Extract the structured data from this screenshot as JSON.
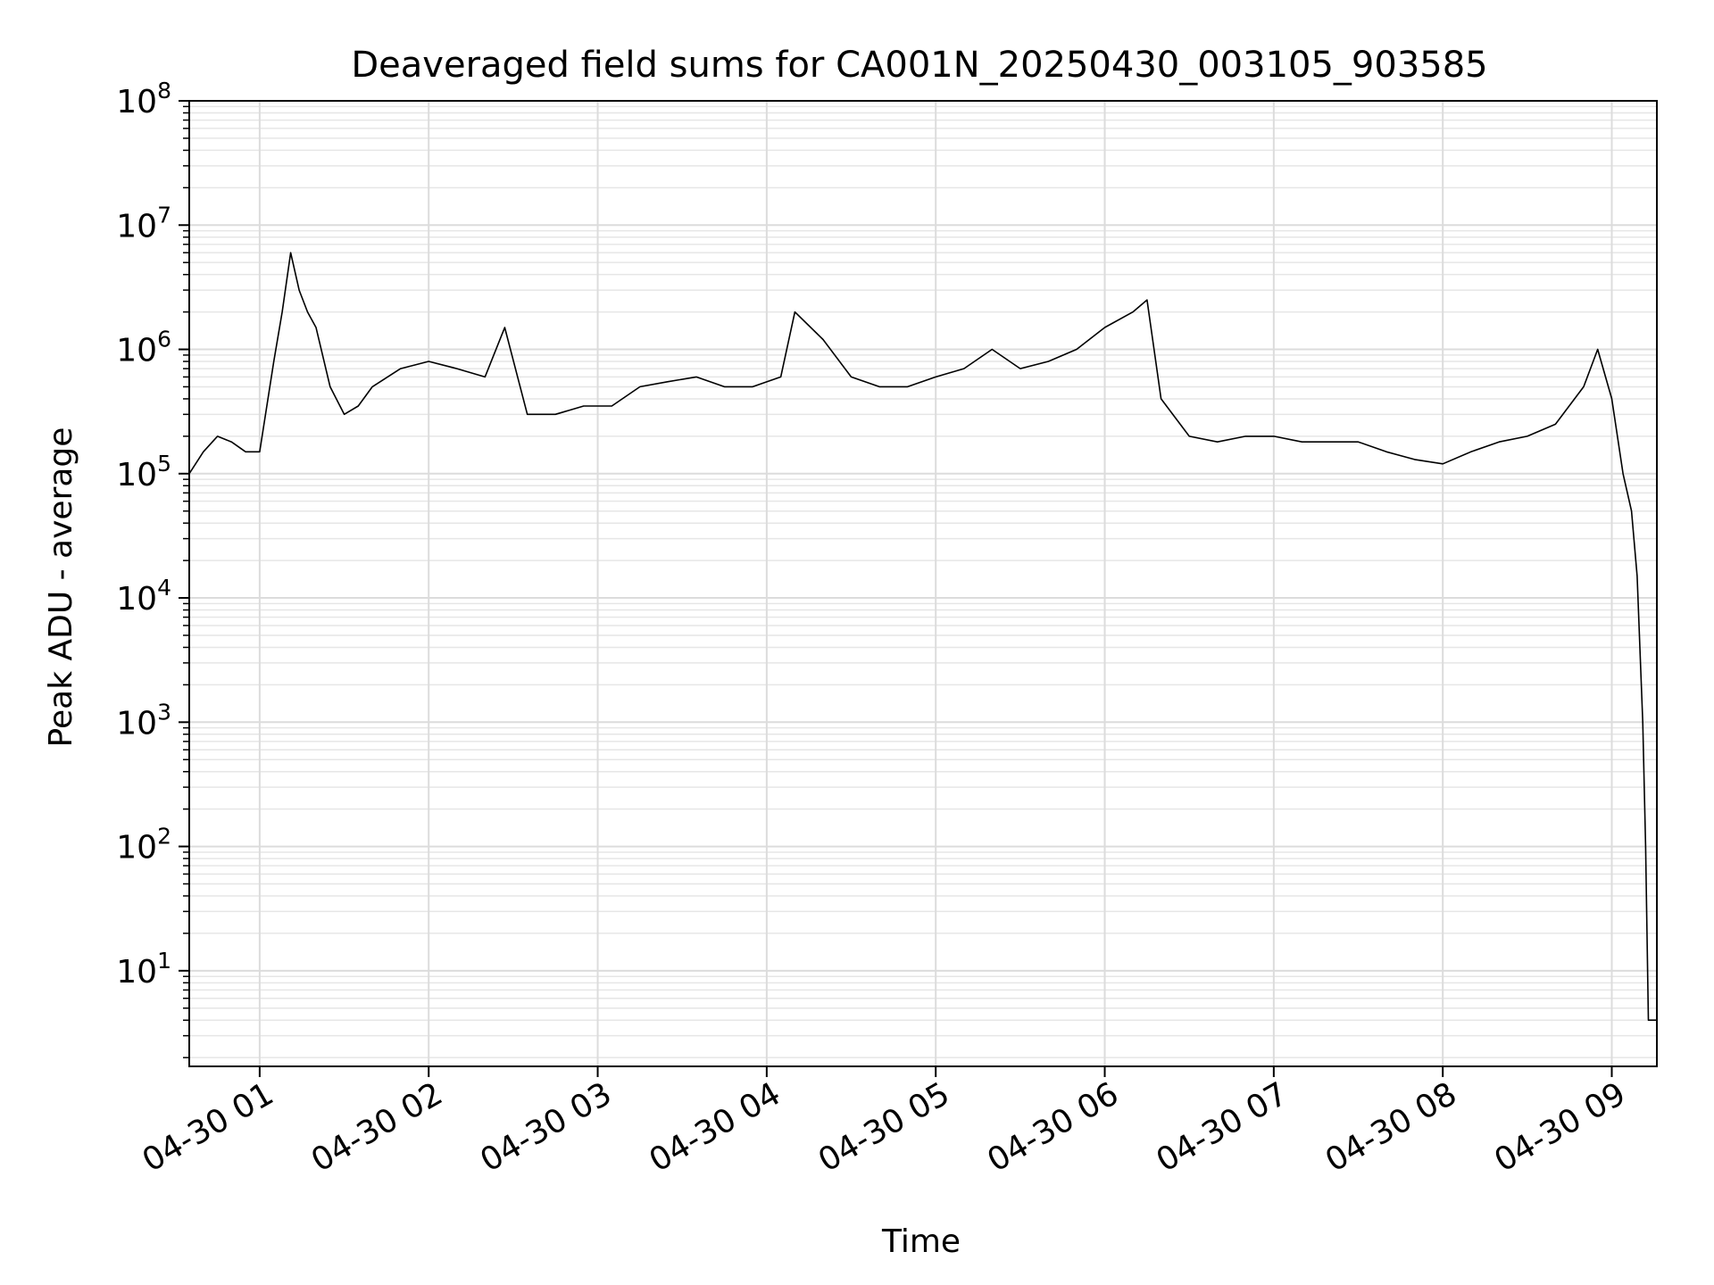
{
  "chart_data": {
    "type": "line",
    "title": "Deaveraged field sums for CA001N_20250430_003105_903585",
    "xlabel": "Time",
    "ylabel": "Peak ADU - average",
    "xlim": [
      "2025-04-30 00:35",
      "2025-04-30 09:16"
    ],
    "ylim": [
      1.7,
      100000000
    ],
    "yscale": "log",
    "grid": true,
    "line_color": "#000000",
    "x_ticks": [
      {
        "value": "2025-04-30 01:00",
        "label": "04-30 01"
      },
      {
        "value": "2025-04-30 02:00",
        "label": "04-30 02"
      },
      {
        "value": "2025-04-30 03:00",
        "label": "04-30 03"
      },
      {
        "value": "2025-04-30 04:00",
        "label": "04-30 04"
      },
      {
        "value": "2025-04-30 05:00",
        "label": "04-30 05"
      },
      {
        "value": "2025-04-30 06:00",
        "label": "04-30 06"
      },
      {
        "value": "2025-04-30 07:00",
        "label": "04-30 07"
      },
      {
        "value": "2025-04-30 08:00",
        "label": "04-30 08"
      },
      {
        "value": "2025-04-30 09:00",
        "label": "04-30 09"
      }
    ],
    "y_ticks": [
      {
        "value": 10,
        "base": "10",
        "exp": "1"
      },
      {
        "value": 100,
        "base": "10",
        "exp": "2"
      },
      {
        "value": 1000,
        "base": "10",
        "exp": "3"
      },
      {
        "value": 10000,
        "base": "10",
        "exp": "4"
      },
      {
        "value": 100000,
        "base": "10",
        "exp": "5"
      },
      {
        "value": 1000000,
        "base": "10",
        "exp": "6"
      },
      {
        "value": 10000000,
        "base": "10",
        "exp": "7"
      },
      {
        "value": 100000000,
        "base": "10",
        "exp": "8"
      }
    ],
    "series": [
      {
        "x": [
          "2025-04-30 00:35",
          "2025-04-30 00:40",
          "2025-04-30 00:45",
          "2025-04-30 00:50",
          "2025-04-30 00:55",
          "2025-04-30 01:00",
          "2025-04-30 01:05",
          "2025-04-30 01:08",
          "2025-04-30 01:11",
          "2025-04-30 01:14",
          "2025-04-30 01:17",
          "2025-04-30 01:20",
          "2025-04-30 01:25",
          "2025-04-30 01:30",
          "2025-04-30 01:35",
          "2025-04-30 01:40",
          "2025-04-30 01:50",
          "2025-04-30 02:00",
          "2025-04-30 02:10",
          "2025-04-30 02:20",
          "2025-04-30 02:27",
          "2025-04-30 02:35",
          "2025-04-30 02:45",
          "2025-04-30 02:55",
          "2025-04-30 03:05",
          "2025-04-30 03:15",
          "2025-04-30 03:25",
          "2025-04-30 03:35",
          "2025-04-30 03:45",
          "2025-04-30 03:55",
          "2025-04-30 04:05",
          "2025-04-30 04:10",
          "2025-04-30 04:20",
          "2025-04-30 04:30",
          "2025-04-30 04:40",
          "2025-04-30 04:50",
          "2025-04-30 05:00",
          "2025-04-30 05:10",
          "2025-04-30 05:20",
          "2025-04-30 05:30",
          "2025-04-30 05:40",
          "2025-04-30 05:50",
          "2025-04-30 06:00",
          "2025-04-30 06:10",
          "2025-04-30 06:15",
          "2025-04-30 06:20",
          "2025-04-30 06:30",
          "2025-04-30 06:40",
          "2025-04-30 06:50",
          "2025-04-30 07:00",
          "2025-04-30 07:10",
          "2025-04-30 07:20",
          "2025-04-30 07:30",
          "2025-04-30 07:40",
          "2025-04-30 07:50",
          "2025-04-30 08:00",
          "2025-04-30 08:10",
          "2025-04-30 08:20",
          "2025-04-30 08:30",
          "2025-04-30 08:40",
          "2025-04-30 08:50",
          "2025-04-30 08:55",
          "2025-04-30 09:00",
          "2025-04-30 09:04",
          "2025-04-30 09:07",
          "2025-04-30 09:09",
          "2025-04-30 09:11",
          "2025-04-30 09:12",
          "2025-04-30 09:13",
          "2025-04-30 09:14",
          "2025-04-30 09:16"
        ],
        "values": [
          100000,
          150000,
          200000,
          180000,
          150000,
          150000,
          800000,
          2000000,
          6000000,
          3000000,
          2000000,
          1500000,
          500000,
          300000,
          350000,
          500000,
          700000,
          800000,
          700000,
          600000,
          1500000,
          300000,
          300000,
          350000,
          350000,
          500000,
          550000,
          600000,
          500000,
          500000,
          600000,
          2000000,
          1200000,
          600000,
          500000,
          500000,
          600000,
          700000,
          1000000,
          700000,
          800000,
          1000000,
          1500000,
          2000000,
          2500000,
          400000,
          200000,
          180000,
          200000,
          200000,
          180000,
          180000,
          180000,
          150000,
          130000,
          120000,
          150000,
          180000,
          200000,
          250000,
          500000,
          1000000,
          400000,
          100000,
          50000,
          15000,
          1000,
          100,
          4,
          4,
          4
        ]
      }
    ]
  }
}
